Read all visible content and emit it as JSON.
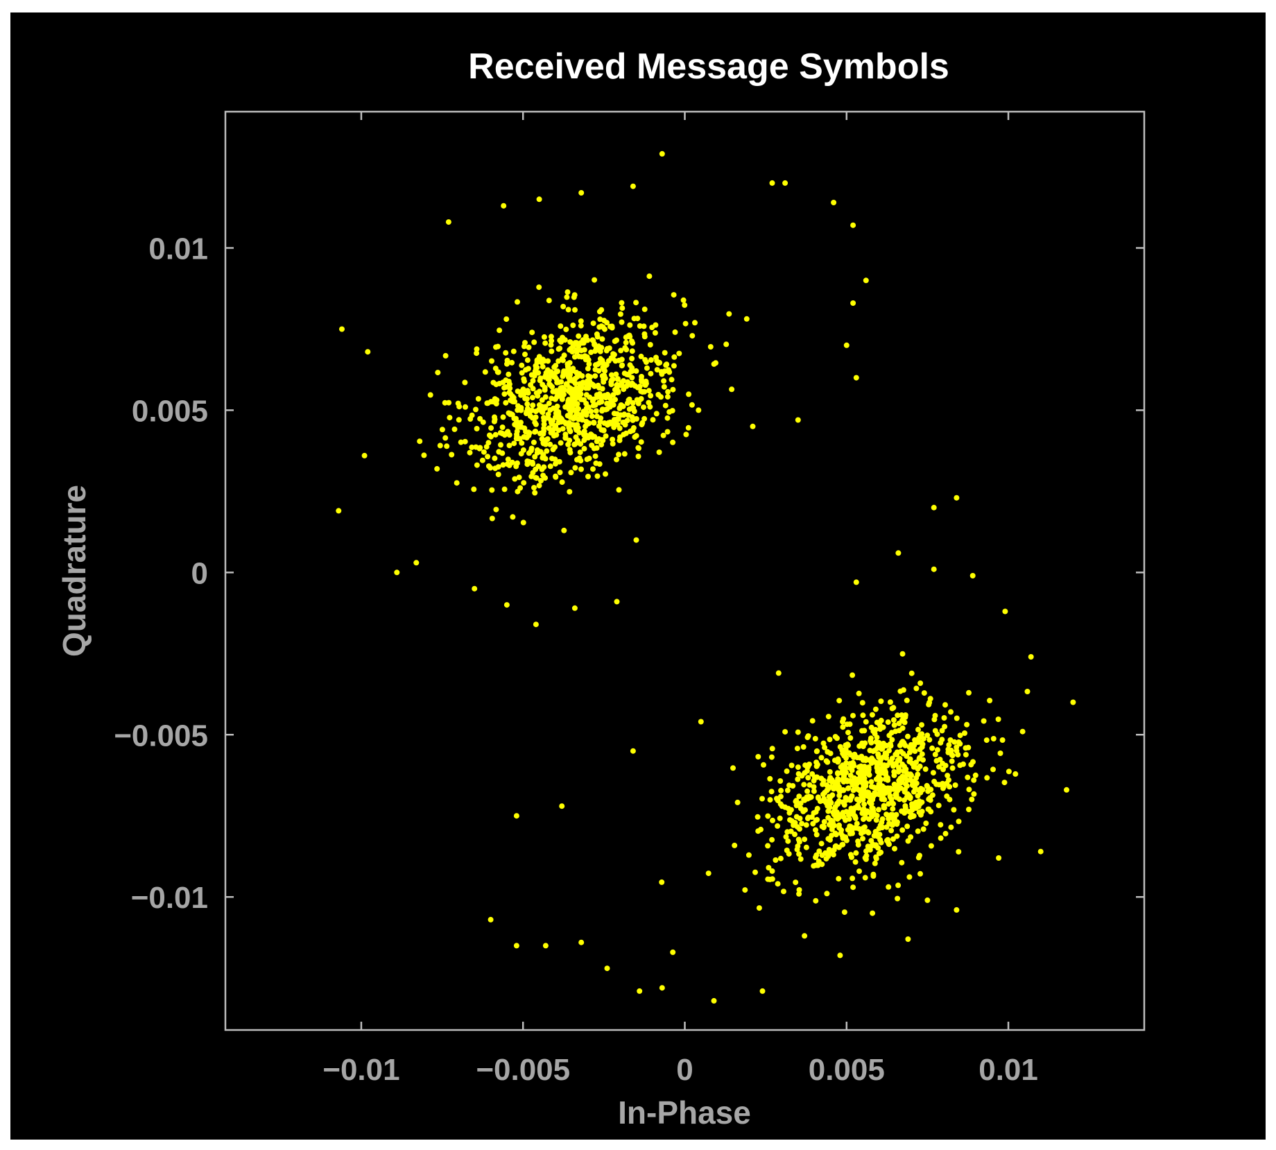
{
  "chart_data": {
    "type": "scatter",
    "title": "Received Message Symbols",
    "xlabel": "In-Phase",
    "ylabel": "Quadrature",
    "xlim": [
      -0.0142,
      0.0142
    ],
    "ylim": [
      -0.0141,
      0.0142
    ],
    "xticks": [
      -0.01,
      -0.005,
      0,
      0.005,
      0.01
    ],
    "xtick_labels": [
      "−0.01",
      "−0.005",
      "0",
      "0.005",
      "0.01"
    ],
    "yticks": [
      0.01,
      0.005,
      0,
      -0.005,
      -0.01
    ],
    "ytick_labels": [
      "0.01",
      "0.005",
      "0",
      "−0.005",
      "−0.01"
    ],
    "grid": false,
    "legend": "none",
    "colors": {
      "background": "#000000",
      "points": "#ffff00",
      "axes": "#a6a6a6",
      "title": "#ffffff"
    },
    "series": [
      {
        "clusters": [
          {
            "center_x": -0.0034,
            "center_y": 0.0054,
            "spread_x": 0.0033,
            "spread_y": 0.0026,
            "count": 950
          },
          {
            "center_x": 0.0057,
            "center_y": -0.0067,
            "spread_x": 0.0031,
            "spread_y": 0.0025,
            "count": 950
          }
        ],
        "points": [
          [
            -0.0106,
            0.0075
          ],
          [
            -0.0107,
            0.0019
          ],
          [
            -0.0098,
            0.0068
          ],
          [
            -0.0099,
            0.0036
          ],
          [
            -0.0089,
            0.0
          ],
          [
            -0.0083,
            0.0003
          ],
          [
            -0.0073,
            0.0108
          ],
          [
            -0.0056,
            0.0113
          ],
          [
            -0.0045,
            0.0115
          ],
          [
            -0.0032,
            0.0117
          ],
          [
            -0.0016,
            0.0119
          ],
          [
            -0.0007,
            0.0129
          ],
          [
            0.0027,
            0.012
          ],
          [
            0.0031,
            0.012
          ],
          [
            0.0046,
            0.0114
          ],
          [
            0.0052,
            0.0107
          ],
          [
            0.0056,
            0.009
          ],
          [
            0.0052,
            0.0083
          ],
          [
            0.005,
            0.007
          ],
          [
            0.0053,
            0.006
          ],
          [
            0.0035,
            0.0047
          ],
          [
            0.0021,
            0.0045
          ],
          [
            -0.0065,
            -0.0005
          ],
          [
            -0.0055,
            -0.001
          ],
          [
            -0.0046,
            -0.0016
          ],
          [
            -0.0034,
            -0.0011
          ],
          [
            -0.0021,
            -0.0009
          ],
          [
            -0.0015,
            0.001
          ],
          [
            0.0077,
            0.002
          ],
          [
            0.0084,
            0.0023
          ],
          [
            0.0066,
            0.0006
          ],
          [
            0.0077,
            0.0001
          ],
          [
            0.0089,
            -0.0001
          ],
          [
            0.0099,
            -0.0012
          ],
          [
            0.0107,
            -0.0026
          ],
          [
            0.012,
            -0.004
          ],
          [
            0.0118,
            -0.0067
          ],
          [
            0.011,
            -0.0086
          ],
          [
            0.0097,
            -0.0088
          ],
          [
            0.0084,
            -0.0104
          ],
          [
            0.0075,
            -0.0101
          ],
          [
            0.0069,
            -0.0113
          ],
          [
            0.0058,
            -0.0105
          ],
          [
            0.0048,
            -0.0118
          ],
          [
            0.0037,
            -0.0112
          ],
          [
            0.0024,
            -0.0129
          ],
          [
            0.0009,
            -0.0132
          ],
          [
            -0.0007,
            -0.0128
          ],
          [
            -0.0014,
            -0.0129
          ],
          [
            -0.0024,
            -0.0122
          ],
          [
            -0.0032,
            -0.0114
          ],
          [
            -0.0043,
            -0.0115
          ],
          [
            -0.0052,
            -0.0115
          ],
          [
            -0.006,
            -0.0107
          ],
          [
            -0.0052,
            -0.0075
          ],
          [
            -0.0038,
            -0.0072
          ],
          [
            -0.0016,
            -0.0055
          ],
          [
            0.0005,
            -0.0046
          ],
          [
            0.0029,
            -0.0031
          ],
          [
            0.0053,
            -0.0003
          ]
        ]
      }
    ]
  }
}
